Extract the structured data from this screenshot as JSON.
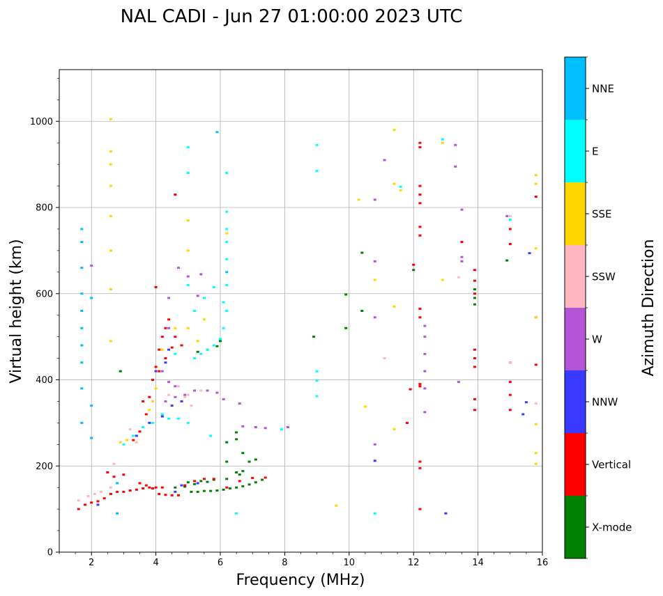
{
  "chart_data": {
    "type": "scatter",
    "title": "NAL CADI - Jun 27 01:00:00 2023 UTC",
    "xlabel": "Frequency (MHz)",
    "ylabel": "Virtual height (km)",
    "xlim": [
      1,
      16
    ],
    "ylim": [
      0,
      1120
    ],
    "xticks": [
      2,
      4,
      6,
      8,
      10,
      12,
      14,
      16
    ],
    "yticks": [
      0,
      200,
      400,
      600,
      800,
      1000
    ],
    "grid": true,
    "colorbar": {
      "title": "Azimuth Direction",
      "categories": [
        {
          "name": "X-mode",
          "color": "#008000"
        },
        {
          "name": "Vertical",
          "color": "#ff0000"
        },
        {
          "name": "NNW",
          "color": "#3a3aff"
        },
        {
          "name": "W",
          "color": "#b455d6"
        },
        {
          "name": "SSW",
          "color": "#ffb6c1"
        },
        {
          "name": "SSE",
          "color": "#ffd700"
        },
        {
          "name": "E",
          "color": "#00ffff"
        },
        {
          "name": "NNE",
          "color": "#00bfff"
        }
      ]
    },
    "series": [
      {
        "name": "X-mode",
        "points": [
          [
            5.1,
            140
          ],
          [
            5.3,
            140
          ],
          [
            5.5,
            142
          ],
          [
            5.7,
            142
          ],
          [
            5.9,
            143
          ],
          [
            6.1,
            145
          ],
          [
            6.3,
            148
          ],
          [
            6.5,
            150
          ],
          [
            6.7,
            153
          ],
          [
            6.9,
            157
          ],
          [
            7.1,
            162
          ],
          [
            7.3,
            168
          ],
          [
            5.0,
            162
          ],
          [
            5.4,
            165
          ],
          [
            5.8,
            168
          ],
          [
            6.2,
            170
          ],
          [
            6.6,
            180
          ],
          [
            6.7,
            188
          ],
          [
            6.5,
            185
          ],
          [
            4.6,
            150
          ],
          [
            4.9,
            152
          ],
          [
            5.2,
            158
          ],
          [
            5.6,
            163
          ],
          [
            6.5,
            262
          ],
          [
            6.5,
            278
          ],
          [
            6.2,
            255
          ],
          [
            6.7,
            230
          ],
          [
            6.2,
            210
          ],
          [
            6.9,
            210
          ],
          [
            7.1,
            215
          ],
          [
            2.9,
            420
          ],
          [
            5.3,
            465
          ],
          [
            5.6,
            470
          ],
          [
            5.9,
            478
          ],
          [
            6.0,
            490
          ],
          [
            8.9,
            500
          ],
          [
            9.9,
            520
          ],
          [
            9.9,
            598
          ],
          [
            10.4,
            560
          ],
          [
            10.4,
            695
          ],
          [
            12.0,
            655
          ],
          [
            14.9,
            677
          ],
          [
            13.9,
            610
          ],
          [
            13.9,
            590
          ],
          [
            13.9,
            575
          ]
        ]
      },
      {
        "name": "Vertical",
        "points": [
          [
            1.6,
            100
          ],
          [
            1.8,
            110
          ],
          [
            2.0,
            115
          ],
          [
            2.2,
            118
          ],
          [
            2.4,
            125
          ],
          [
            2.6,
            135
          ],
          [
            2.8,
            140
          ],
          [
            3.0,
            140
          ],
          [
            3.2,
            143
          ],
          [
            3.4,
            145
          ],
          [
            3.6,
            148
          ],
          [
            3.8,
            150
          ],
          [
            4.0,
            150
          ],
          [
            4.2,
            150
          ],
          [
            3.5,
            160
          ],
          [
            3.7,
            155
          ],
          [
            3.9,
            148
          ],
          [
            4.1,
            135
          ],
          [
            4.3,
            133
          ],
          [
            4.5,
            132
          ],
          [
            4.7,
            132
          ],
          [
            4.9,
            155
          ],
          [
            5.2,
            165
          ],
          [
            5.5,
            170
          ],
          [
            5.8,
            170
          ],
          [
            6.2,
            150
          ],
          [
            6.6,
            165
          ],
          [
            7.0,
            172
          ],
          [
            7.4,
            173
          ],
          [
            2.7,
            175
          ],
          [
            3.0,
            180
          ],
          [
            2.5,
            185
          ],
          [
            3.3,
            260
          ],
          [
            3.5,
            280
          ],
          [
            3.7,
            320
          ],
          [
            3.8,
            360
          ],
          [
            3.9,
            400
          ],
          [
            4.0,
            430
          ],
          [
            4.1,
            470
          ],
          [
            4.2,
            500
          ],
          [
            4.3,
            520
          ],
          [
            4.4,
            540
          ],
          [
            4.6,
            500
          ],
          [
            4.8,
            480
          ],
          [
            4.1,
            420
          ],
          [
            4.0,
            615
          ],
          [
            4.6,
            830
          ],
          [
            4.3,
            450
          ],
          [
            4.5,
            475
          ],
          [
            3.6,
            350
          ],
          [
            12.2,
            100
          ],
          [
            12.2,
            195
          ],
          [
            12.2,
            210
          ],
          [
            12.2,
            390
          ],
          [
            12.2,
            385
          ],
          [
            12.2,
            545
          ],
          [
            12.2,
            565
          ],
          [
            12.2,
            735
          ],
          [
            12.2,
            755
          ],
          [
            12.2,
            810
          ],
          [
            12.2,
            830
          ],
          [
            12.2,
            850
          ],
          [
            12.2,
            940
          ],
          [
            12.2,
            950
          ],
          [
            11.8,
            300
          ],
          [
            11.9,
            378
          ],
          [
            13.9,
            330
          ],
          [
            13.9,
            355
          ],
          [
            13.9,
            430
          ],
          [
            13.9,
            450
          ],
          [
            13.9,
            470
          ],
          [
            13.9,
            600
          ],
          [
            13.9,
            630
          ],
          [
            13.9,
            655
          ],
          [
            15.0,
            330
          ],
          [
            15.0,
            365
          ],
          [
            15.0,
            395
          ],
          [
            15.0,
            440
          ],
          [
            15.0,
            715
          ],
          [
            15.0,
            750
          ],
          [
            15.8,
            435
          ],
          [
            15.8,
            825
          ],
          [
            13.5,
            720
          ],
          [
            12.0,
            667
          ]
        ]
      },
      {
        "name": "NNW",
        "points": [
          [
            4.8,
            155
          ],
          [
            4.6,
            140
          ],
          [
            5.3,
            160
          ],
          [
            3.4,
            270
          ],
          [
            3.8,
            300
          ],
          [
            4.2,
            315
          ],
          [
            4.5,
            340
          ],
          [
            4.8,
            350
          ],
          [
            2.2,
            110
          ],
          [
            4.0,
            420
          ],
          [
            4.3,
            440
          ],
          [
            15.4,
            320
          ],
          [
            15.5,
            348
          ],
          [
            15.6,
            694
          ],
          [
            13.0,
            90
          ],
          [
            10.8,
            212
          ],
          [
            4.4,
            470
          ]
        ]
      },
      {
        "name": "W",
        "points": [
          [
            4.3,
            350
          ],
          [
            4.6,
            360
          ],
          [
            4.9,
            365
          ],
          [
            5.2,
            375
          ],
          [
            5.6,
            375
          ],
          [
            5.9,
            370
          ],
          [
            6.1,
            355
          ],
          [
            6.6,
            345
          ],
          [
            6.7,
            292
          ],
          [
            7.1,
            290
          ],
          [
            7.4,
            288
          ],
          [
            8.1,
            290
          ],
          [
            4.4,
            395
          ],
          [
            4.6,
            385
          ],
          [
            4.2,
            420
          ],
          [
            4.4,
            520
          ],
          [
            4.4,
            590
          ],
          [
            5.0,
            640
          ],
          [
            5.4,
            645
          ],
          [
            4.7,
            660
          ],
          [
            5.3,
            595
          ],
          [
            2.0,
            665
          ],
          [
            12.35,
            325
          ],
          [
            12.35,
            380
          ],
          [
            12.35,
            420
          ],
          [
            12.35,
            460
          ],
          [
            12.35,
            500
          ],
          [
            12.35,
            525
          ],
          [
            13.4,
            395
          ],
          [
            13.5,
            795
          ],
          [
            13.5,
            685
          ],
          [
            13.5,
            675
          ],
          [
            13.3,
            895
          ],
          [
            13.3,
            945
          ],
          [
            10.8,
            675
          ],
          [
            10.8,
            545
          ],
          [
            10.8,
            818
          ],
          [
            10.8,
            250
          ],
          [
            11.1,
            910
          ],
          [
            14.9,
            780
          ],
          [
            15.8,
            545
          ]
        ]
      },
      {
        "name": "SSW",
        "points": [
          [
            1.6,
            120
          ],
          [
            1.9,
            130
          ],
          [
            2.3,
            140
          ],
          [
            2.6,
            150
          ],
          [
            2.8,
            160
          ],
          [
            2.7,
            205
          ],
          [
            3.4,
            255
          ],
          [
            4.7,
            385
          ],
          [
            4.9,
            360
          ],
          [
            5.0,
            365
          ],
          [
            5.1,
            340
          ],
          [
            5.4,
            375
          ],
          [
            4.4,
            365
          ],
          [
            3.2,
            285
          ],
          [
            2.1,
            135
          ],
          [
            15.0,
            780
          ],
          [
            15.0,
            440
          ],
          [
            15.8,
            345
          ],
          [
            11.1,
            450
          ],
          [
            13.4,
            638
          ]
        ]
      },
      {
        "name": "SSE",
        "points": [
          [
            2.9,
            255
          ],
          [
            3.1,
            260
          ],
          [
            3.3,
            270
          ],
          [
            3.6,
            290
          ],
          [
            3.8,
            330
          ],
          [
            3.9,
            350
          ],
          [
            4.0,
            380
          ],
          [
            4.2,
            470
          ],
          [
            4.6,
            520
          ],
          [
            5.0,
            520
          ],
          [
            5.3,
            490
          ],
          [
            5.5,
            540
          ],
          [
            6.2,
            740
          ],
          [
            5.0,
            700
          ],
          [
            5.0,
            770
          ],
          [
            2.6,
            610
          ],
          [
            2.6,
            700
          ],
          [
            2.6,
            780
          ],
          [
            2.6,
            850
          ],
          [
            2.6,
            930
          ],
          [
            2.6,
            1005
          ],
          [
            2.6,
            900
          ],
          [
            2.6,
            490
          ],
          [
            10.3,
            818
          ],
          [
            11.4,
            980
          ],
          [
            11.4,
            855
          ],
          [
            11.6,
            840
          ],
          [
            12.9,
            950
          ],
          [
            12.9,
            632
          ],
          [
            10.8,
            632
          ],
          [
            11.4,
            570
          ],
          [
            11.4,
            285
          ],
          [
            10.5,
            338
          ],
          [
            9.6,
            108
          ],
          [
            15.8,
            205
          ],
          [
            15.8,
            230
          ],
          [
            15.8,
            297
          ],
          [
            15.8,
            545
          ],
          [
            15.8,
            705
          ],
          [
            15.8,
            855
          ],
          [
            15.8,
            875
          ]
        ]
      },
      {
        "name": "E",
        "points": [
          [
            3.0,
            250
          ],
          [
            3.3,
            270
          ],
          [
            3.6,
            290
          ],
          [
            3.9,
            300
          ],
          [
            4.2,
            320
          ],
          [
            4.4,
            310
          ],
          [
            4.7,
            310
          ],
          [
            5.0,
            300
          ],
          [
            5.2,
            450
          ],
          [
            5.4,
            460
          ],
          [
            5.6,
            470
          ],
          [
            5.8,
            480
          ],
          [
            6.0,
            495
          ],
          [
            6.1,
            520
          ],
          [
            6.1,
            580
          ],
          [
            6.2,
            620
          ],
          [
            6.2,
            680
          ],
          [
            6.2,
            720
          ],
          [
            6.2,
            750
          ],
          [
            6.2,
            790
          ],
          [
            6.2,
            880
          ],
          [
            5.0,
            880
          ],
          [
            5.0,
            940
          ],
          [
            5.2,
            560
          ],
          [
            5.5,
            590
          ],
          [
            5.8,
            615
          ],
          [
            6.2,
            560
          ],
          [
            5.7,
            270
          ],
          [
            6.5,
            90
          ],
          [
            7.9,
            285
          ],
          [
            5.0,
            620
          ],
          [
            4.6,
            460
          ],
          [
            9.0,
            945
          ],
          [
            9.0,
            885
          ],
          [
            9.0,
            420
          ],
          [
            9.0,
            398
          ],
          [
            9.0,
            362
          ],
          [
            10.8,
            90
          ],
          [
            12.9,
            958
          ],
          [
            15.0,
            772
          ],
          [
            11.6,
            848
          ]
        ]
      },
      {
        "name": "NNE",
        "points": [
          [
            1.7,
            300
          ],
          [
            1.7,
            380
          ],
          [
            1.7,
            440
          ],
          [
            1.7,
            480
          ],
          [
            1.7,
            520
          ],
          [
            1.7,
            560
          ],
          [
            1.7,
            600
          ],
          [
            1.7,
            660
          ],
          [
            1.7,
            720
          ],
          [
            1.7,
            750
          ],
          [
            2.0,
            340
          ],
          [
            2.0,
            265
          ],
          [
            2.8,
            90
          ],
          [
            2.8,
            160
          ],
          [
            5.9,
            975
          ],
          [
            6.2,
            650
          ],
          [
            2.0,
            590
          ]
        ]
      }
    ]
  }
}
